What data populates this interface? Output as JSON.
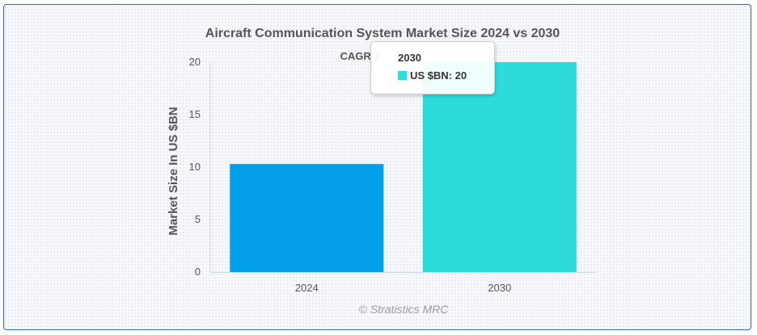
{
  "chart_data": {
    "type": "bar",
    "title": "Aircraft Communication System Market Size 2024 vs 2030",
    "subtitle": "CAGR 1",
    "categories": [
      "2024",
      "2030"
    ],
    "series": [
      {
        "name": "US $BN",
        "values": [
          10.3,
          20
        ]
      }
    ],
    "bar_colors": [
      "#039fea",
      "#2ddbdb"
    ],
    "ylabel": "Market Size In US $BN",
    "xlabel": "",
    "ylim": [
      0,
      20
    ],
    "yticks": [
      "0",
      "5",
      "10",
      "15",
      "20"
    ],
    "grid": false,
    "legend": "none",
    "credit": "© Stratistics MRC",
    "tooltip": {
      "category": "2030",
      "series_label": "US $BN",
      "value_text": "US $BN: 20",
      "swatch_color": "#2ddbdb"
    }
  }
}
